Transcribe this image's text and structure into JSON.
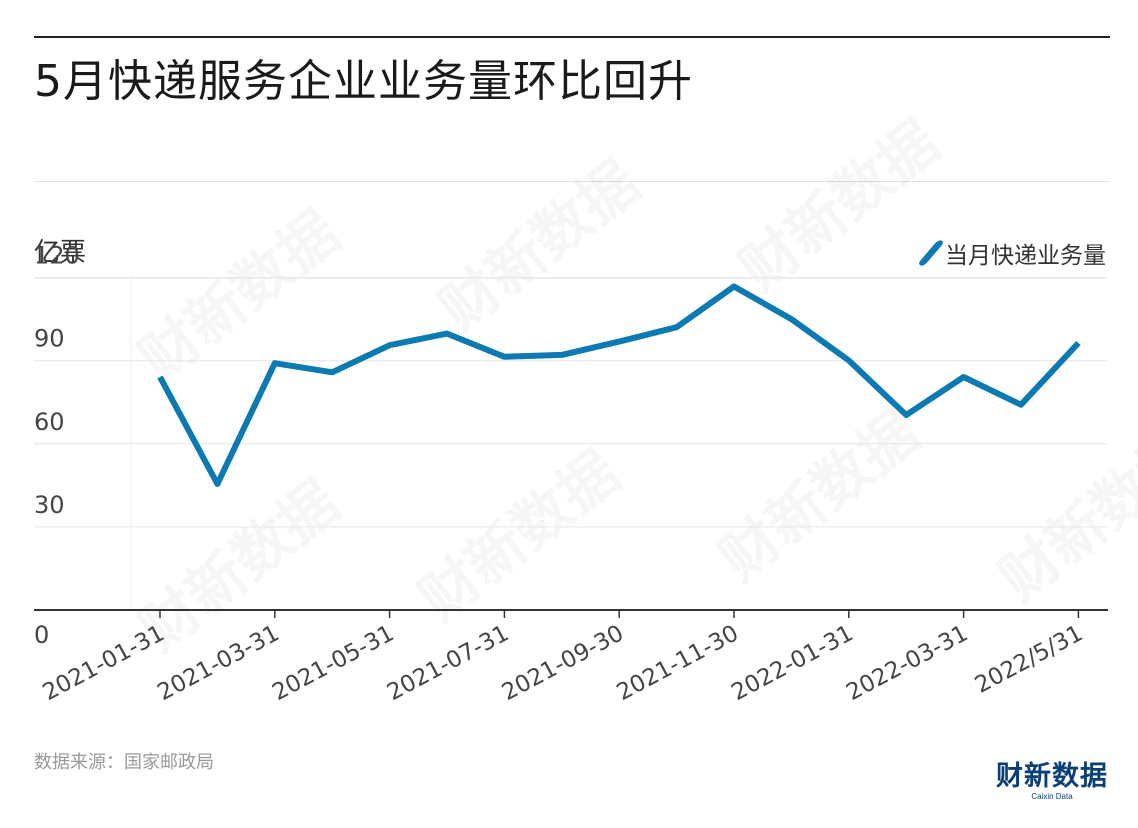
{
  "title": "5月快递服务企业业务量环比回升",
  "unit_label": "亿票",
  "legend": {
    "label": "当月快递业务量",
    "color": "#0b79b2"
  },
  "source": "数据来源：国家邮政局",
  "logo": {
    "main": "财新数据",
    "sub": "Caixin Data"
  },
  "watermark": "财新数据",
  "chart_data": {
    "type": "line",
    "ylim": [
      0,
      130
    ],
    "yticks": [
      "0",
      "30",
      "60",
      "90",
      "120"
    ],
    "ytick_values": [
      0,
      30,
      60,
      90,
      120
    ],
    "xtick_labels": [
      "2021-01-31",
      "2021-03-31",
      "2021-05-31",
      "2021-07-31",
      "2021-09-30",
      "2021-11-30",
      "2022-01-31",
      "2022-03-31",
      "2022/5/31"
    ],
    "xtick_indices": [
      0,
      2,
      4,
      6,
      8,
      10,
      12,
      14,
      16
    ],
    "x": [
      "2021-01-31",
      "2021-02-28",
      "2021-03-31",
      "2021-04-30",
      "2021-05-31",
      "2021-06-30",
      "2021-07-31",
      "2021-08-31",
      "2021-09-30",
      "2021-10-31",
      "2021-11-30",
      "2021-12-31",
      "2022-01-31",
      "2022-02-28",
      "2022-03-31",
      "2022-04-30",
      "2022-05-31"
    ],
    "series": [
      {
        "name": "当月快递业务量",
        "color": "#0b79b2",
        "values": [
          84.1,
          45.5,
          89.1,
          85.8,
          95.6,
          99.8,
          91.4,
          92.1,
          96.9,
          102.1,
          116.8,
          105.0,
          90.1,
          70.4,
          84.1,
          74.1,
          96.4
        ]
      }
    ],
    "grid": true
  }
}
